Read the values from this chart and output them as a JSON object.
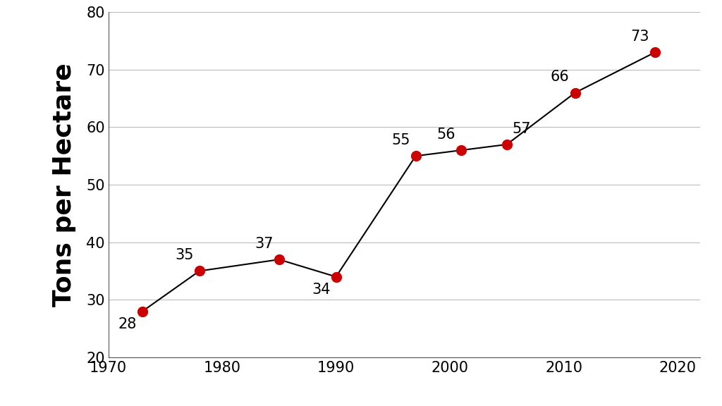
{
  "x": [
    1973,
    1978,
    1985,
    1990,
    1997,
    2001,
    2005,
    2011,
    2018
  ],
  "y": [
    28,
    35,
    37,
    34,
    55,
    56,
    57,
    66,
    73
  ],
  "labels": [
    "28",
    "35",
    "37",
    "34",
    "55",
    "56",
    "57",
    "66",
    "73"
  ],
  "label_ha": [
    "right",
    "right",
    "right",
    "right",
    "right",
    "right",
    "left",
    "right",
    "right"
  ],
  "label_va": [
    "top",
    "bottom",
    "bottom",
    "top",
    "bottom",
    "bottom",
    "bottom",
    "bottom",
    "bottom"
  ],
  "label_dx": [
    -0.5,
    -0.5,
    -0.5,
    -0.5,
    -0.5,
    -0.5,
    0.5,
    -0.5,
    -0.5
  ],
  "label_dy": [
    -1.0,
    1.5,
    1.5,
    -1.0,
    1.5,
    1.5,
    1.5,
    1.5,
    1.5
  ],
  "line_color": "#000000",
  "marker_color": "#cc0000",
  "marker_size": 11,
  "ylabel": "Tons per Hectare",
  "xlim": [
    1970,
    2022
  ],
  "ylim": [
    20,
    80
  ],
  "yticks": [
    20,
    30,
    40,
    50,
    60,
    70,
    80
  ],
  "xticks": [
    1970,
    1980,
    1990,
    2000,
    2010,
    2020
  ],
  "grid_color": "#bbbbbb",
  "background_color": "#ffffff",
  "label_fontsize": 15,
  "axis_label_fontsize": 26,
  "tick_fontsize": 15
}
